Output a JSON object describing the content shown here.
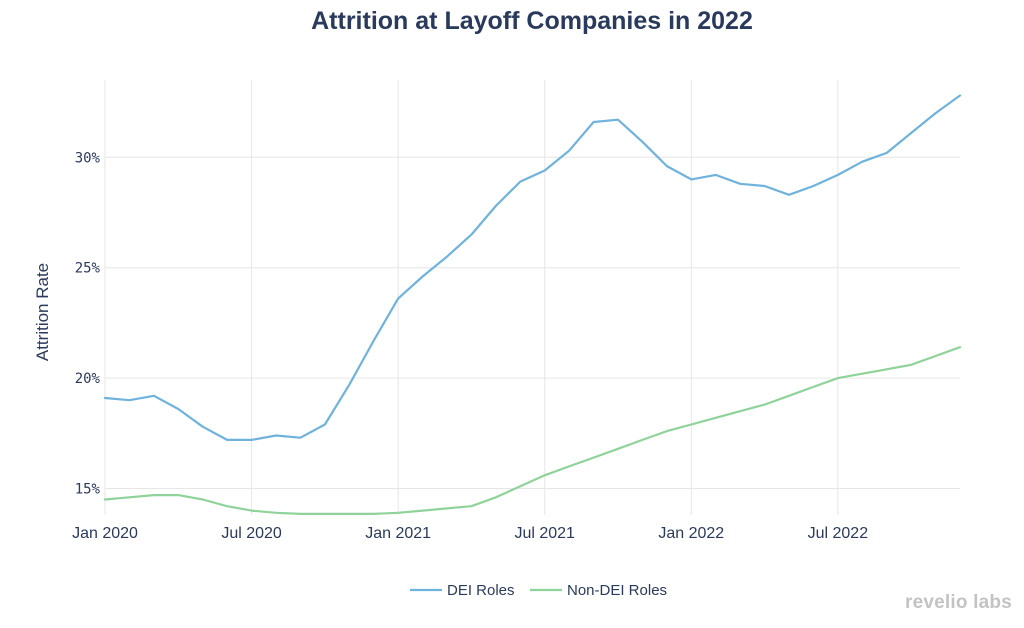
{
  "chart_data": {
    "type": "line",
    "title": "Attrition at Layoff Companies in 2022",
    "xlabel": "",
    "ylabel": "Attrition Rate",
    "x": [
      "2020-01",
      "2020-02",
      "2020-03",
      "2020-04",
      "2020-05",
      "2020-06",
      "2020-07",
      "2020-08",
      "2020-09",
      "2020-10",
      "2020-11",
      "2020-12",
      "2021-01",
      "2021-02",
      "2021-03",
      "2021-04",
      "2021-05",
      "2021-06",
      "2021-07",
      "2021-08",
      "2021-09",
      "2021-10",
      "2021-11",
      "2021-12",
      "2022-01",
      "2022-02",
      "2022-03",
      "2022-04",
      "2022-05",
      "2022-06",
      "2022-07",
      "2022-08",
      "2022-09",
      "2022-10",
      "2022-11",
      "2022-12"
    ],
    "x_ticks": [
      "Jan 2020",
      "Jul 2020",
      "Jan 2021",
      "Jul 2021",
      "Jan 2022",
      "Jul 2022"
    ],
    "y_ticks": [
      "15%",
      "20%",
      "25%",
      "30%"
    ],
    "y_tick_values": [
      15,
      20,
      25,
      30
    ],
    "ylim": [
      13.8,
      33.5
    ],
    "grid": true,
    "legend_position": "bottom-center",
    "series": [
      {
        "name": "DEI Roles",
        "color": "#6fb3dd",
        "values": [
          19.1,
          19.0,
          19.2,
          18.6,
          17.8,
          17.2,
          17.2,
          17.4,
          17.3,
          17.9,
          19.7,
          21.7,
          23.6,
          24.6,
          25.5,
          26.5,
          27.8,
          28.9,
          29.4,
          30.3,
          31.6,
          31.7,
          30.7,
          29.6,
          29.0,
          29.2,
          28.8,
          28.7,
          28.3,
          28.7,
          29.2,
          29.8,
          30.2,
          31.1,
          32.0,
          32.8
        ]
      },
      {
        "name": "Non-DEI Roles",
        "color": "#8fd39a",
        "values": [
          14.5,
          14.6,
          14.7,
          14.7,
          14.5,
          14.2,
          14.0,
          13.9,
          13.85,
          13.85,
          13.85,
          13.85,
          13.9,
          14.0,
          14.1,
          14.2,
          14.6,
          15.1,
          15.6,
          16.0,
          16.4,
          16.8,
          17.2,
          17.6,
          17.9,
          18.2,
          18.5,
          18.8,
          19.2,
          19.6,
          20.0,
          20.2,
          20.4,
          20.6,
          21.0,
          21.4
        ]
      }
    ]
  },
  "branding": {
    "text": "revelio labs"
  }
}
